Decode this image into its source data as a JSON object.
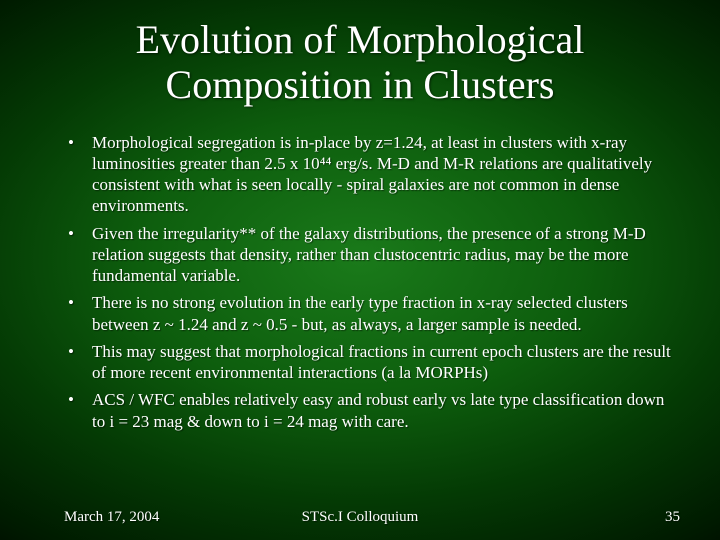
{
  "background": {
    "gradient_center": "#1a7a1a",
    "gradient_mid": "#043a04",
    "gradient_edge": "#000000"
  },
  "text_color": "#ffffff",
  "title": {
    "line1": "Evolution of Morphological",
    "line2": "Composition in Clusters",
    "fontsize": 40,
    "font_family": "Times New Roman"
  },
  "body_fontsize": 17,
  "bullets": [
    "Morphological segregation is in-place by z=1.24, at least in clusters with x-ray luminosities greater than 2.5 x 10⁴⁴ erg/s. M-D and M-R relations are qualitatively consistent with what is seen locally - spiral galaxies are not common in dense environments.",
    "Given the irregularity** of the galaxy distributions, the presence of a strong M-D relation suggests that density, rather than clustocentric radius, may be the more fundamental variable.",
    "There is no strong evolution in the early type fraction in x-ray selected clusters between z ~ 1.24 and z ~ 0.5 - but, as always, a larger sample is needed.",
    "This may suggest that morphological fractions in current epoch clusters are the result of more recent environmental interactions (a la MORPHs)",
    "ACS / WFC enables relatively easy and robust early vs late type classification down to i = 23 mag & down to i = 24 mag with care."
  ],
  "footer": {
    "date": "March 17, 2004",
    "venue": "STSc.I Colloquium",
    "page": "35",
    "fontsize": 15
  }
}
